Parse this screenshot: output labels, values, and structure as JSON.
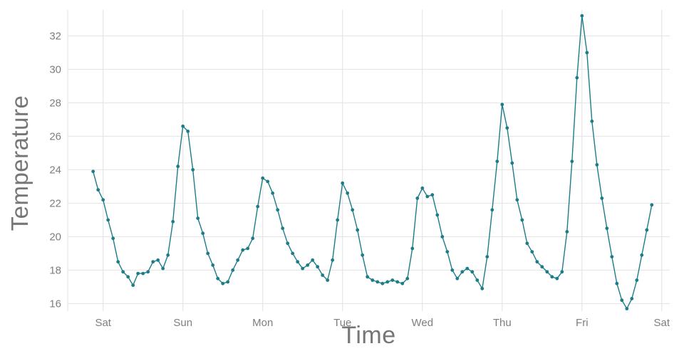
{
  "chart_data": {
    "type": "line",
    "title": "",
    "xlabel": "Time",
    "ylabel": "Temperature",
    "series": [
      {
        "name": "temperature",
        "x_step": 1,
        "x_start": 0,
        "values": [
          23.9,
          22.8,
          22.2,
          21.0,
          19.9,
          18.5,
          17.9,
          17.6,
          17.1,
          17.8,
          17.8,
          17.9,
          18.5,
          18.6,
          18.1,
          18.9,
          20.9,
          24.2,
          26.6,
          26.3,
          24.0,
          21.1,
          20.2,
          19.0,
          18.3,
          17.5,
          17.2,
          17.3,
          18.0,
          18.6,
          19.2,
          19.3,
          19.9,
          21.8,
          23.5,
          23.3,
          22.6,
          21.6,
          20.5,
          19.6,
          19.0,
          18.5,
          18.1,
          18.3,
          18.6,
          18.2,
          17.7,
          17.4,
          18.6,
          21.0,
          23.2,
          22.6,
          21.6,
          20.4,
          18.9,
          17.6,
          17.4,
          17.3,
          17.2,
          17.3,
          17.4,
          17.3,
          17.2,
          17.5,
          19.3,
          22.3,
          22.9,
          22.4,
          22.5,
          21.3,
          20.0,
          19.1,
          18.0,
          17.5,
          17.9,
          18.1,
          17.9,
          17.4,
          16.9,
          18.8,
          21.6,
          24.5,
          27.9,
          26.5,
          24.4,
          22.2,
          21.0,
          19.6,
          19.1,
          18.5,
          18.2,
          17.9,
          17.6,
          17.5,
          17.9,
          20.3,
          24.5,
          29.5,
          33.2,
          31.0,
          26.9,
          24.3,
          22.3,
          20.5,
          18.8,
          17.2,
          16.2,
          15.7,
          16.3,
          17.4,
          18.9,
          20.4,
          21.9
        ]
      }
    ],
    "x_tick_positions": [
      2,
      18,
      34,
      50,
      66,
      82,
      98,
      114
    ],
    "x_tick_labels": [
      "Sat",
      "Sun",
      "Mon",
      "Tue",
      "Wed",
      "Thu",
      "Fri",
      "Sat"
    ],
    "y_ticks": [
      16,
      18,
      20,
      22,
      24,
      26,
      28,
      30,
      32
    ],
    "x_range": [
      -5.1,
      115.6
    ],
    "y_range": [
      15.55,
      33.55
    ],
    "grid": true,
    "legend_position": "none",
    "line_color": "#1d7d87",
    "marker_color": "#1d7d87",
    "grid_color": "#e2e2e2",
    "background_color": "#ffffff",
    "tick_label_color": "#7e7e7e",
    "axis_title_color": "#767676",
    "marker_size": 2.4,
    "line_width": 1.4
  }
}
